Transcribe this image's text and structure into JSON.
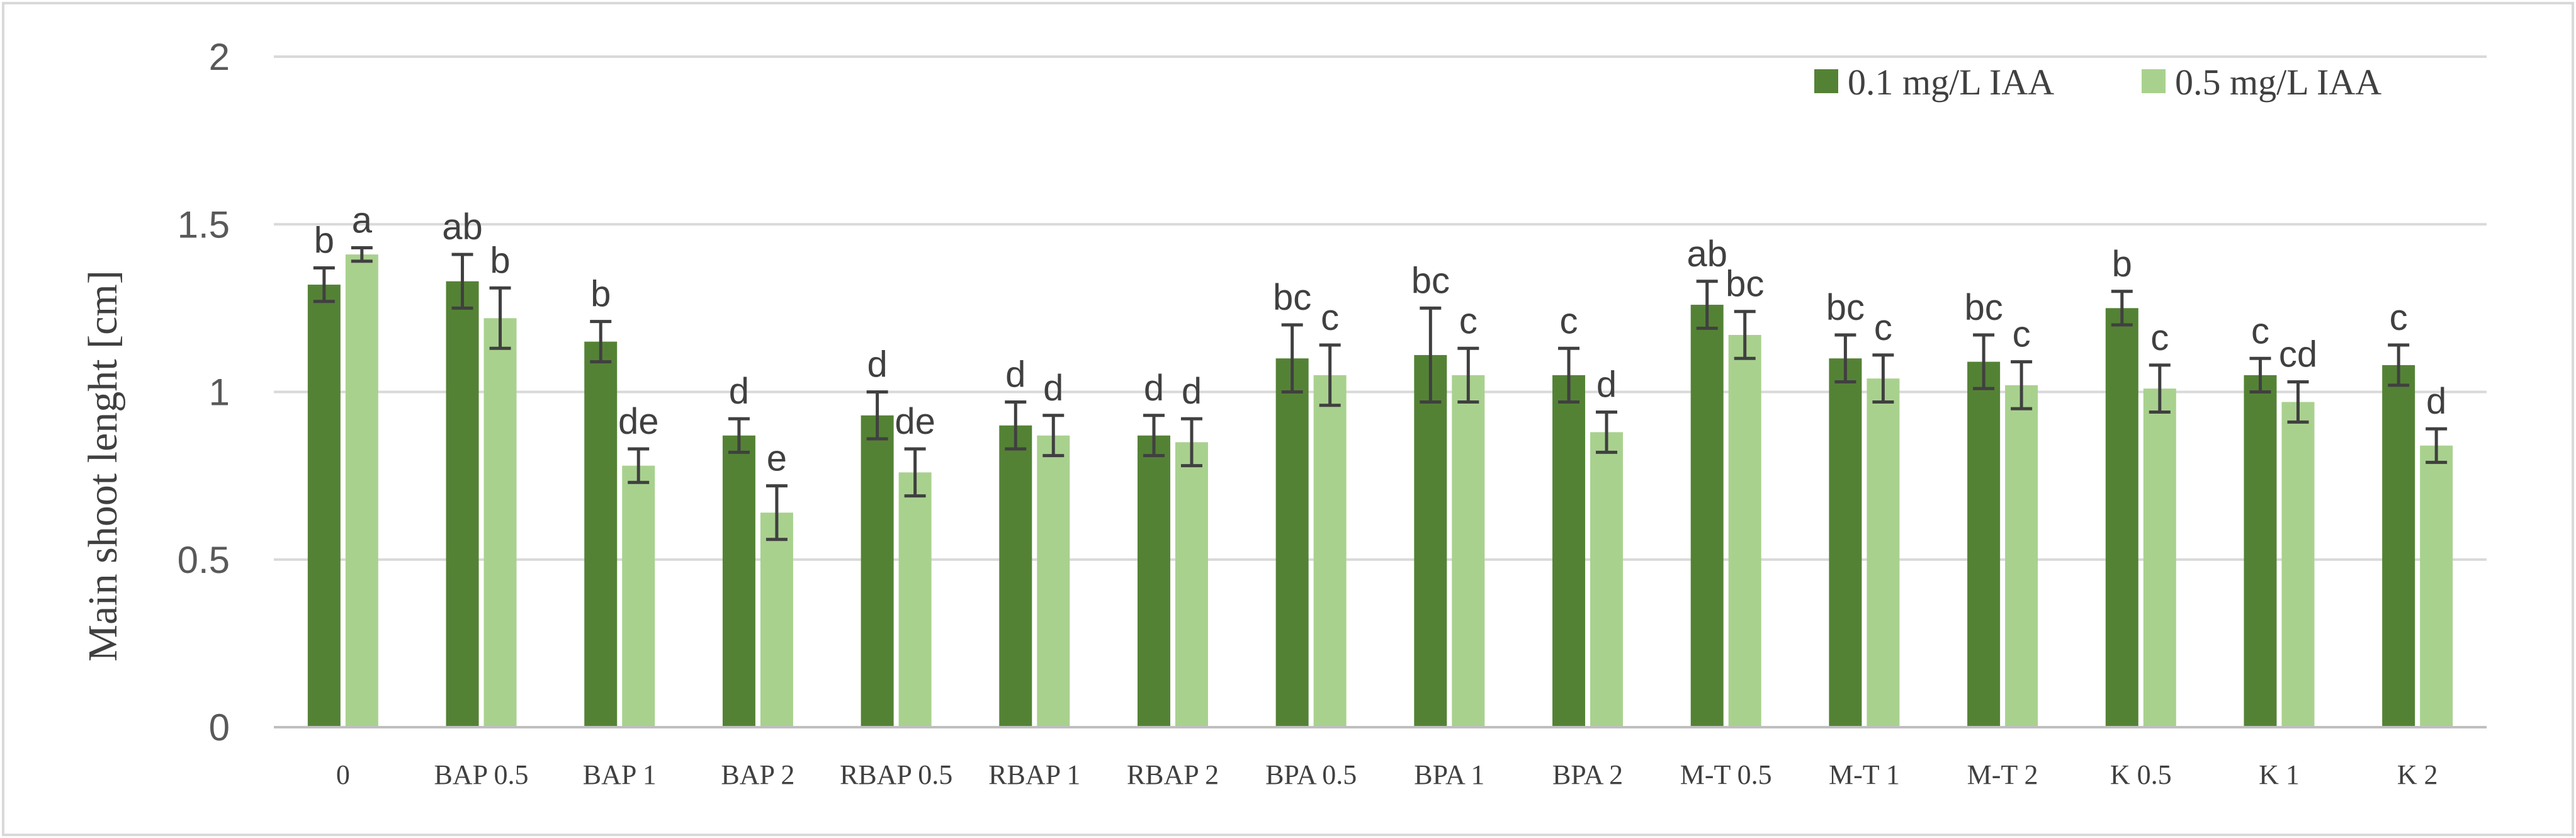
{
  "chart_data": {
    "type": "bar",
    "title": "",
    "xlabel": "",
    "ylabel": "Main shoot lenght [cm]",
    "ylim": [
      0,
      2
    ],
    "yticks": [
      0,
      0.5,
      1,
      1.5,
      2
    ],
    "ytick_labels": [
      "0",
      "0.5",
      "1",
      "1.5",
      "2"
    ],
    "grid": true,
    "legend_position": "top-right",
    "categories": [
      "0",
      "BAP 0.5",
      "BAP 1",
      "BAP 2",
      "RBAP 0.5",
      "RBAP 1",
      "RBAP 2",
      "BPA 0.5",
      "BPA 1",
      "BPA 2",
      "M-T 0.5",
      "M-T 1",
      "M-T 2",
      "K 0.5",
      "K 1",
      "K 2"
    ],
    "series": [
      {
        "name": "0.1 mg/L IAA",
        "color": "#548235",
        "values": [
          1.32,
          1.33,
          1.15,
          0.87,
          0.93,
          0.9,
          0.87,
          1.1,
          1.11,
          1.05,
          1.26,
          1.1,
          1.09,
          1.25,
          1.05,
          1.08
        ],
        "errors": [
          0.05,
          0.08,
          0.06,
          0.05,
          0.07,
          0.07,
          0.06,
          0.1,
          0.14,
          0.08,
          0.07,
          0.07,
          0.08,
          0.05,
          0.05,
          0.06
        ],
        "letters": [
          "b",
          "ab",
          "b",
          "d",
          "d",
          "d",
          "d",
          "bc",
          "bc",
          "c",
          "ab",
          "bc",
          "bc",
          "b",
          "c",
          "c"
        ]
      },
      {
        "name": "0.5 mg/L IAA",
        "color": "#A9D18E",
        "values": [
          1.41,
          1.22,
          0.78,
          0.64,
          0.76,
          0.87,
          0.85,
          1.05,
          1.05,
          0.88,
          1.17,
          1.04,
          1.02,
          1.01,
          0.97,
          0.84
        ],
        "errors": [
          0.02,
          0.09,
          0.05,
          0.08,
          0.07,
          0.06,
          0.07,
          0.09,
          0.08,
          0.06,
          0.07,
          0.07,
          0.07,
          0.07,
          0.06,
          0.05
        ],
        "letters": [
          "a",
          "b",
          "de",
          "e",
          "de",
          "d",
          "d",
          "c",
          "c",
          "d",
          "bc",
          "c",
          "c",
          "c",
          "cd",
          "d"
        ]
      }
    ]
  }
}
